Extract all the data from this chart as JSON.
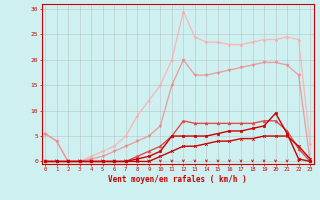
{
  "xlabel": "Vent moyen/en rafales ( km/h )",
  "background_color": "#cff0f0",
  "grid_color": "#aaaaaa",
  "x_values": [
    0,
    1,
    2,
    3,
    4,
    5,
    6,
    7,
    8,
    9,
    10,
    11,
    12,
    13,
    14,
    15,
    16,
    17,
    18,
    19,
    20,
    21,
    22,
    23
  ],
  "lines": [
    {
      "y": [
        0,
        0,
        0,
        0,
        0,
        0,
        0,
        0,
        0,
        0,
        1,
        2,
        3,
        3,
        3.5,
        4,
        4,
        4.5,
        4.5,
        5,
        5,
        5,
        3,
        0.5
      ],
      "color": "#cc0000",
      "lw": 1.0
    },
    {
      "y": [
        0,
        0,
        0,
        0,
        0,
        0,
        0,
        0,
        0.5,
        1,
        2,
        5,
        5,
        5,
        5,
        5.5,
        6,
        6,
        6.5,
        7,
        9.5,
        5.5,
        0.5,
        0
      ],
      "color": "#cc0000",
      "lw": 1.0
    },
    {
      "y": [
        0,
        0,
        0,
        0,
        0,
        0,
        0,
        0,
        1,
        2,
        3,
        5,
        8,
        7.5,
        7.5,
        7.5,
        7.5,
        7.5,
        7.5,
        8,
        8,
        6,
        2.5,
        0
      ],
      "color": "#dd3333",
      "lw": 1.0
    },
    {
      "y": [
        5.5,
        4,
        0,
        0,
        0.5,
        1,
        2,
        3,
        4,
        5,
        7,
        15,
        20,
        17,
        17,
        17.5,
        18,
        18.5,
        19,
        19.5,
        19.5,
        19,
        17,
        0
      ],
      "color": "#ee8888",
      "lw": 1.0
    },
    {
      "y": [
        5.5,
        4,
        0,
        0,
        1,
        2,
        3,
        5,
        9,
        12,
        15,
        20,
        29.5,
        24.5,
        23.5,
        23.5,
        23,
        23,
        23.5,
        24,
        24,
        24.5,
        24,
        3.5
      ],
      "color": "#ffaaaa",
      "lw": 1.0
    }
  ],
  "markers": [
    "s",
    "o",
    "^",
    "v",
    "*"
  ],
  "marker_colors": [
    "#cc0000",
    "#cc0000",
    "#dd4444",
    "#ee8888",
    "#ffaaaa"
  ],
  "arrow_color": "#cc0000",
  "xlabel_color": "#cc0000",
  "tick_color": "#cc0000",
  "ytick_vals": [
    0,
    5,
    10,
    15,
    20,
    25,
    30
  ],
  "ytick_labels": [
    "0",
    "5",
    "10",
    "15",
    "20",
    "25",
    "30"
  ],
  "ylim": [
    -0.5,
    31
  ],
  "xlim": [
    -0.3,
    23.3
  ],
  "figsize": [
    3.2,
    2.0
  ],
  "dpi": 100
}
